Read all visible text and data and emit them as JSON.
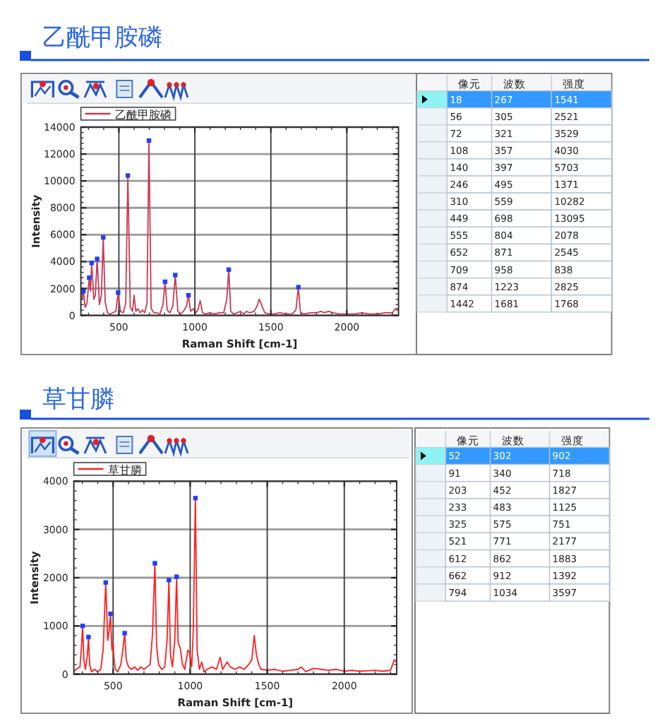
{
  "chart_data": [
    {
      "type": "line",
      "title": "乙酰甲胺磷",
      "xlabel": "Raman Shift [cm-1]",
      "ylabel": "Intensity",
      "xlim": [
        250,
        2340
      ],
      "xticks": [
        500,
        1000,
        1500,
        2000
      ],
      "ylim": [
        0,
        14000
      ],
      "yticks": [
        0,
        2000,
        4000,
        6000,
        8000,
        10000,
        12000,
        14000
      ],
      "grid": true,
      "legend": "top left",
      "series": [
        {
          "name": "乙酰甲胺磷",
          "color": "#c83a55",
          "x": [
            250,
            258,
            267,
            278,
            290,
            305,
            313,
            321,
            335,
            345,
            357,
            372,
            385,
            397,
            410,
            425,
            440,
            460,
            480,
            495,
            510,
            530,
            545,
            559,
            575,
            590,
            600,
            612,
            625,
            640,
            655,
            670,
            685,
            698,
            712,
            730,
            750,
            770,
            790,
            804,
            818,
            835,
            855,
            871,
            888,
            905,
            925,
            945,
            958,
            972,
            990,
            1005,
            1020,
            1035,
            1050,
            1070,
            1100,
            1130,
            1160,
            1190,
            1210,
            1223,
            1236,
            1255,
            1280,
            1300,
            1320,
            1340,
            1360,
            1390,
            1410,
            1423,
            1435,
            1445,
            1460,
            1490,
            1520,
            1560,
            1600,
            1640,
            1665,
            1681,
            1695,
            1720,
            1760,
            1800,
            1830,
            1850,
            1880,
            1910,
            1950,
            2000,
            2050,
            2100,
            2150,
            2200,
            2250,
            2300,
            2320,
            2340
          ],
          "values": [
            1600,
            1200,
            1800,
            600,
            900,
            2800,
            1800,
            3900,
            1200,
            1500,
            4200,
            800,
            1500,
            5800,
            1000,
            200,
            100,
            200,
            300,
            1700,
            300,
            200,
            900,
            10400,
            600,
            300,
            1500,
            300,
            500,
            200,
            400,
            200,
            900,
            13000,
            500,
            200,
            200,
            100,
            800,
            2500,
            400,
            200,
            700,
            3000,
            300,
            100,
            300,
            700,
            1500,
            300,
            500,
            200,
            400,
            1100,
            200,
            100,
            200,
            100,
            200,
            200,
            1200,
            3400,
            300,
            100,
            200,
            300,
            100,
            300,
            200,
            300,
            700,
            1200,
            900,
            600,
            200,
            100,
            100,
            200,
            100,
            100,
            400,
            2100,
            200,
            100,
            200,
            200,
            300,
            200,
            300,
            200,
            100,
            100,
            100,
            200,
            100,
            100,
            200,
            200,
            500,
            500
          ]
        },
        {
          "type": "scatter",
          "color": "#2040ff",
          "marker": "square",
          "x": [
            267,
            305,
            321,
            357,
            397,
            495,
            559,
            698,
            804,
            871,
            958,
            1223,
            1681
          ],
          "values": [
            1800,
            2800,
            3900,
            4200,
            5800,
            1700,
            10400,
            13000,
            2500,
            3000,
            1500,
            3400,
            2100
          ]
        }
      ]
    },
    {
      "type": "other",
      "categories": [
        "像元",
        "波数",
        "强度"
      ],
      "annotations": [
        "18",
        "267",
        "1541",
        "56",
        "305",
        "2521",
        "72",
        "321",
        "3529",
        "108",
        "357",
        "4030",
        "140",
        "397",
        "5703",
        "246",
        "495",
        "1371",
        "310",
        "559",
        "10282",
        "449",
        "698",
        "13095",
        "555",
        "804",
        "2078",
        "652",
        "871",
        "2545",
        "709",
        "958",
        "838",
        "874",
        "1223",
        "2825",
        "1442",
        "1681",
        "1768"
      ]
    },
    {
      "type": "line",
      "title": "草甘膦",
      "xlabel": "Raman Shift [cm-1]",
      "ylabel": "Intensity",
      "xlim": [
        245,
        2340
      ],
      "xticks": [
        500,
        1000,
        1500,
        2000
      ],
      "ylim": [
        0,
        4000
      ],
      "yticks": [
        0,
        1000,
        2000,
        3000,
        4000
      ],
      "grid": true,
      "legend": "top left",
      "series": [
        {
          "name": "草甘膦",
          "color": "#ff2020",
          "x": [
            245,
            260,
            285,
            295,
            302,
            310,
            320,
            333,
            340,
            348,
            360,
            380,
            400,
            420,
            435,
            452,
            465,
            474,
            483,
            492,
            500,
            506,
            515,
            530,
            550,
            563,
            575,
            585,
            600,
            620,
            640,
            660,
            680,
            700,
            720,
            740,
            755,
            771,
            782,
            795,
            815,
            835,
            850,
            862,
            872,
            885,
            900,
            912,
            922,
            935,
            950,
            965,
            985,
            995,
            1010,
            1020,
            1034,
            1045,
            1060,
            1075,
            1090,
            1110,
            1140,
            1170,
            1195,
            1210,
            1240,
            1260,
            1290,
            1320,
            1350,
            1380,
            1400,
            1416,
            1430,
            1445,
            1460,
            1500,
            1550,
            1600,
            1650,
            1700,
            1720,
            1750,
            1800,
            1850,
            1900,
            1950,
            2000,
            2050,
            2100,
            2150,
            2200,
            2250,
            2300,
            2325,
            2340
          ],
          "values": [
            50,
            100,
            150,
            600,
            1000,
            300,
            100,
            400,
            770,
            200,
            50,
            100,
            50,
            100,
            500,
            1900,
            700,
            900,
            1250,
            500,
            650,
            300,
            100,
            50,
            200,
            500,
            850,
            300,
            150,
            100,
            150,
            80,
            150,
            100,
            150,
            200,
            800,
            2300,
            600,
            200,
            100,
            150,
            700,
            1950,
            400,
            150,
            700,
            2020,
            650,
            550,
            200,
            100,
            500,
            450,
            150,
            900,
            3650,
            500,
            100,
            250,
            50,
            100,
            150,
            100,
            350,
            100,
            250,
            150,
            100,
            150,
            100,
            200,
            300,
            800,
            400,
            200,
            100,
            80,
            100,
            60,
            80,
            100,
            150,
            50,
            120,
            100,
            80,
            100,
            60,
            80,
            60,
            70,
            80,
            60,
            80,
            300,
            250
          ]
        },
        {
          "type": "scatter",
          "color": "#2040ff",
          "marker": "square",
          "x": [
            302,
            340,
            452,
            483,
            575,
            771,
            862,
            912,
            1034
          ],
          "values": [
            1000,
            770,
            1900,
            1250,
            850,
            2300,
            1950,
            2020,
            3650
          ]
        }
      ]
    },
    {
      "type": "other",
      "categories": [
        "像元",
        "波数",
        "强度"
      ],
      "annotations": [
        "52",
        "302",
        "902",
        "91",
        "340",
        "718",
        "203",
        "452",
        "1827",
        "233",
        "483",
        "1125",
        "325",
        "575",
        "751",
        "521",
        "771",
        "2177",
        "612",
        "862",
        "1883",
        "662",
        "912",
        "1392",
        "794",
        "1034",
        "3597"
      ]
    }
  ]
}
